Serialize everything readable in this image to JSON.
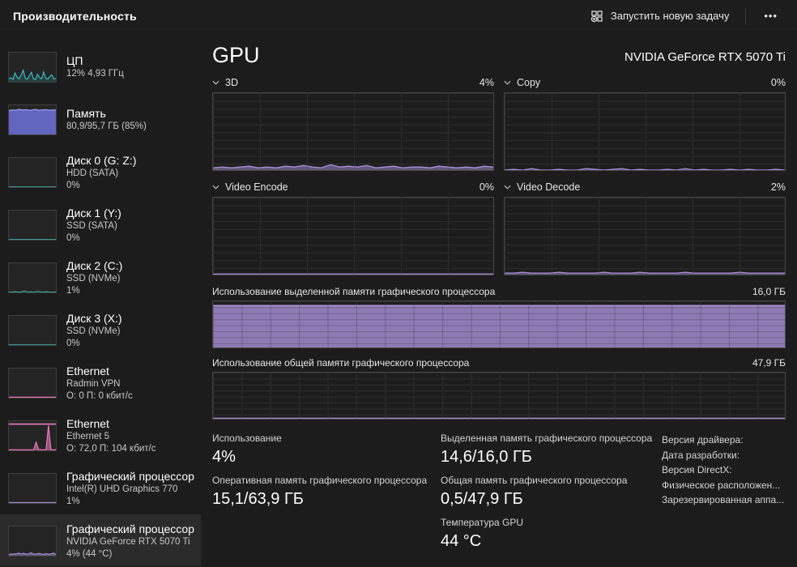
{
  "titlebar": {
    "title": "Производительность",
    "run_new_task": "Запустить новую задачу",
    "more": "•••"
  },
  "sidebar": {
    "items": [
      {
        "title": "ЦП",
        "line1": "12% 4,93 ГГц",
        "line2": ""
      },
      {
        "title": "Память",
        "line1": "80,9/95,7 ГБ (85%)",
        "line2": ""
      },
      {
        "title": "Диск 0 (G: Z:)",
        "line1": "HDD (SATA)",
        "line2": "0%"
      },
      {
        "title": "Диск 1 (Y:)",
        "line1": "SSD (SATA)",
        "line2": "0%"
      },
      {
        "title": "Диск 2 (C:)",
        "line1": "SSD (NVMe)",
        "line2": "1%"
      },
      {
        "title": "Диск 3 (X:)",
        "line1": "SSD (NVMe)",
        "line2": "0%"
      },
      {
        "title": "Ethernet",
        "line1": "Radmin VPN",
        "line2": "О: 0 П: 0 кбит/с"
      },
      {
        "title": "Ethernet",
        "line1": "Ethernet 5",
        "line2": "О: 72,0 П: 104 кбит/с"
      },
      {
        "title": "Графический процессор",
        "line1": "Intel(R) UHD Graphics 770",
        "line2": "1%"
      },
      {
        "title": "Графический процессор",
        "line1": "NVIDIA GeForce RTX 5070 Ti",
        "line2": "4% (44 °C)"
      }
    ]
  },
  "main": {
    "title": "GPU",
    "subtitle": "NVIDIA GeForce RTX 5070 Ti",
    "charts": {
      "d3": {
        "label": "3D",
        "value": "4%"
      },
      "copy": {
        "label": "Copy",
        "value": "0%"
      },
      "encode": {
        "label": "Video Encode",
        "value": "0%"
      },
      "decode": {
        "label": "Video Decode",
        "value": "2%"
      },
      "dedicated": {
        "label": "Использование выделенной памяти графического процессора",
        "value": "16,0 ГБ"
      },
      "shared": {
        "label": "Использование общей памяти графического процессора",
        "value": "47,9 ГБ"
      }
    },
    "stats": {
      "col1": [
        {
          "label": "Использование",
          "value": "4%"
        },
        {
          "label": "Оперативная память графического процессора",
          "value": "15,1/63,9 ГБ"
        }
      ],
      "col2": [
        {
          "label": "Выделенная память графического процессора",
          "value": "14,6/16,0 ГБ"
        },
        {
          "label": "Общая память графического процессора",
          "value": "0,5/47,9 ГБ"
        },
        {
          "label": "Температура GPU",
          "value": "44 °C"
        }
      ],
      "col3": [
        "Версия драйвера:",
        "Дата разработки:",
        "Версия DirectX:",
        "Физическое расположен...",
        "Зарезервированная аппа..."
      ]
    }
  },
  "colors": {
    "accent_purple": "#a78fd6",
    "accent_teal": "#3fc0c4",
    "accent_pink": "#ef7bc0",
    "accent_memory_blue": "#6e72d9",
    "background": "#1c1c1c",
    "selected_item": "#2b2b2b",
    "grid_line": "#3a3a3a"
  },
  "chart_data": {
    "type": "area",
    "note": "values are percent of chart max; main GPU engine charts max=100%, dedicated max=16,0 ГБ, shared max=47,9 ГБ",
    "series": {
      "gpu_3d": {
        "values": [
          3,
          4,
          3,
          4,
          5,
          3,
          4,
          3,
          5,
          4,
          6,
          4,
          3,
          7,
          4,
          5,
          4,
          6,
          3,
          4,
          5,
          3,
          4,
          4,
          3,
          5,
          4,
          3,
          4,
          3,
          5,
          4
        ],
        "color": "#a78fd6",
        "fill": "rgba(167,143,214,0.5)",
        "width": 1.4
      },
      "gpu_copy": {
        "values": [
          0,
          1,
          0,
          2,
          0,
          0,
          1,
          0,
          0,
          2,
          1,
          0,
          1,
          2,
          0,
          1,
          0,
          0,
          1,
          0,
          2,
          0,
          1,
          0,
          0,
          1,
          0,
          1,
          0,
          0,
          1,
          0
        ],
        "color": "#a78fd6",
        "fill": "rgba(167,143,214,0.5)",
        "width": 1.3
      },
      "gpu_encode": {
        "values": [
          0.8,
          0.8,
          0.8,
          0.8,
          0.8,
          0.8,
          0.8,
          0.8,
          0.8,
          0.8,
          0.8,
          0.8,
          0.8,
          0.8,
          0.8,
          0.8
        ],
        "color": "#a78fd6",
        "fill": "rgba(167,143,214,0.5)",
        "width": 1.3
      },
      "gpu_decode": {
        "values": [
          2,
          2,
          3,
          2,
          2,
          2,
          3,
          2,
          2,
          2,
          2,
          3,
          2,
          2,
          2,
          3,
          2,
          2,
          2,
          2,
          3,
          2,
          2,
          2,
          2,
          2,
          3,
          2,
          2,
          2,
          2,
          2
        ],
        "color": "#a78fd6",
        "fill": "rgba(167,143,214,0.5)",
        "width": 1.3
      },
      "dedicated_mem": {
        "values": [
          91,
          91,
          91,
          91,
          91,
          91,
          91,
          91,
          91,
          91,
          91,
          91,
          91,
          91,
          91,
          91,
          91,
          91,
          91,
          91
        ],
        "color": "#b79fe0",
        "fill": "rgba(167,143,214,0.82)",
        "width": 1.3
      },
      "shared_mem": {
        "values": [
          1.3,
          1.3,
          1.3,
          1.3,
          1.3,
          1.3,
          1.3,
          1.3,
          1.3,
          1.3,
          1.3,
          1.3,
          1.3,
          1.3,
          1.3,
          1.3
        ],
        "color": "#a78fd6",
        "fill": "rgba(167,143,214,0.5)",
        "width": 1.3
      },
      "cpu_thumb": {
        "values": [
          10,
          14,
          8,
          30,
          16,
          10,
          24,
          40,
          12,
          9,
          20,
          33,
          11,
          8,
          26,
          15,
          10,
          34,
          13,
          9,
          18,
          24,
          10,
          12
        ],
        "color": "#3fc0c4",
        "fill": "rgba(63,192,196,0.18)",
        "width": 1.1
      },
      "mem_thumb": {
        "values": [
          82,
          84,
          83,
          86,
          84,
          85,
          83,
          84,
          86,
          83,
          84,
          85,
          83,
          84,
          84
        ],
        "color": "#9aa0f0",
        "fill": "rgba(110,114,217,0.85)",
        "width": 1.2
      },
      "disk0_thumb": {
        "values": [
          1,
          1,
          1,
          1,
          1,
          1,
          1,
          1,
          1,
          1
        ],
        "color": "#3fa9a4",
        "fill": "rgba(63,169,164,0.15)",
        "width": 1.1
      },
      "disk1_thumb": {
        "values": [
          1,
          1,
          1,
          1,
          1,
          1,
          1,
          1,
          1,
          1
        ],
        "color": "#3fa9a4",
        "fill": "rgba(63,169,164,0.15)",
        "width": 1.1
      },
      "disk2_thumb": {
        "values": [
          1,
          1,
          3,
          1,
          2,
          5,
          1,
          2,
          1,
          4,
          2,
          1,
          3,
          1,
          1,
          2
        ],
        "color": "#3fa9a4",
        "fill": "rgba(63,169,164,0.15)",
        "width": 1.1
      },
      "disk3_thumb": {
        "values": [
          1,
          1,
          1,
          1,
          1,
          1,
          1,
          1,
          1,
          1
        ],
        "color": "#3fa9a4",
        "fill": "rgba(63,169,164,0.15)",
        "width": 1.1
      },
      "eth1_thumb": {
        "values": [
          2,
          2,
          2,
          2,
          2,
          2,
          2,
          2,
          2,
          2
        ],
        "color": "#ef7bc0",
        "fill": "rgba(239,123,192,0.25)",
        "width": 1.1
      },
      "eth2_spikes": {
        "values": [
          2,
          2,
          2,
          2,
          2,
          2,
          2,
          2,
          2,
          2,
          2,
          28,
          3,
          2,
          2,
          2,
          86,
          3,
          2,
          2
        ],
        "color": "#ef7bc0",
        "fill": "rgba(239,123,192,0.55)",
        "width": 1.1
      },
      "eth2_topline": {
        "values": [
          90,
          90,
          90,
          90,
          90
        ],
        "color": "#ef7bc0",
        "width": 1.6
      },
      "gpu0_thumb": {
        "values": [
          1.5,
          1.5,
          1.5,
          1.5,
          1.5,
          1.5,
          1.5,
          1.5,
          1.5,
          1.5
        ],
        "color": "#a78fd6",
        "fill": "rgba(167,143,214,0.3)",
        "width": 1.1
      },
      "gpu1_thumb": {
        "values": [
          4,
          6,
          5,
          7,
          9,
          6,
          8,
          5,
          7,
          10,
          6,
          5,
          8,
          6,
          4,
          7,
          5,
          6,
          9,
          5
        ],
        "color": "#a78fd6",
        "fill": "rgba(167,143,214,0.5)",
        "width": 1.1
      }
    }
  }
}
